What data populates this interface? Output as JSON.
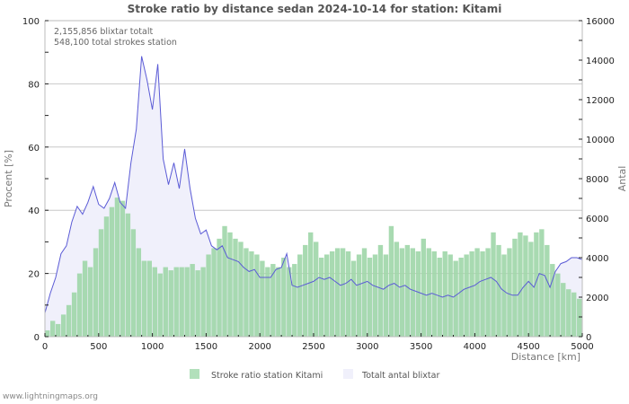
{
  "colors": {
    "bar": "#9fd6a8",
    "bar_legend": "#b2e0bb",
    "area_fill": "#f0f0fb",
    "line": "#5b5bd6",
    "grid": "#c8c8c8",
    "axis": "#bbbbbb"
  },
  "info": {
    "line1": "2,155,856 blixtar totalt",
    "line2": "548,100 total strokes station"
  },
  "footer": "www.lightningmaps.org",
  "chart_data": {
    "type": "bar+area",
    "title": "Stroke ratio by distance sedan 2024-10-14 for station: Kitami",
    "xlabel": "Distance   [km]",
    "ylabel": "Procent   [%]",
    "y2label": "Antal",
    "xlim": [
      0,
      5000
    ],
    "ylim": [
      0,
      100
    ],
    "y2lim": [
      0,
      16000
    ],
    "grid": true,
    "x_ticks": [
      "0",
      "500",
      "1000",
      "1500",
      "2000",
      "2500",
      "3000",
      "3500",
      "4000",
      "4500",
      "5000"
    ],
    "y_ticks": [
      "0",
      "20",
      "40",
      "60",
      "80",
      "100"
    ],
    "y2_ticks": [
      "0",
      "2000",
      "4000",
      "6000",
      "8000",
      "10000",
      "12000",
      "14000",
      "16000"
    ],
    "legend": {
      "placement": "bottom",
      "entries": [
        "Stroke ratio station Kitami",
        "Totalt antal blixtar"
      ]
    },
    "bin_width_km": 50,
    "series": [
      {
        "name": "Stroke ratio station Kitami",
        "type": "bar",
        "axis": "left",
        "x_start": 0,
        "values": [
          2,
          5,
          4,
          7,
          10,
          14,
          20,
          24,
          22,
          28,
          34,
          38,
          41,
          44,
          43,
          39,
          34,
          28,
          24,
          24,
          22,
          20,
          22,
          21,
          22,
          22,
          22,
          23,
          21,
          22,
          26,
          28,
          31,
          35,
          33,
          31,
          30,
          28,
          27,
          26,
          24,
          22,
          23,
          22,
          25,
          22,
          23,
          26,
          29,
          33,
          30,
          25,
          26,
          27,
          28,
          28,
          27,
          24,
          26,
          28,
          25,
          26,
          29,
          26,
          35,
          30,
          28,
          29,
          28,
          27,
          31,
          28,
          27,
          25,
          27,
          26,
          24,
          25,
          26,
          27,
          28,
          27,
          28,
          33,
          29,
          26,
          28,
          31,
          33,
          32,
          30,
          33,
          34,
          29,
          23,
          20,
          17,
          15,
          14,
          12
        ]
      },
      {
        "name": "Totalt antal blixtar",
        "type": "area",
        "axis": "right",
        "x_start": 0,
        "values": [
          1200,
          2200,
          3000,
          4200,
          4600,
          5800,
          6600,
          6200,
          6800,
          7600,
          6700,
          6500,
          7000,
          7800,
          6800,
          6500,
          8800,
          10500,
          14200,
          13000,
          11500,
          13800,
          9000,
          7700,
          8800,
          7500,
          9500,
          7500,
          6000,
          5200,
          5400,
          4600,
          4400,
          4600,
          4000,
          3900,
          3800,
          3500,
          3300,
          3400,
          3000,
          3000,
          3000,
          3400,
          3500,
          4200,
          2600,
          2500,
          2600,
          2700,
          2800,
          3000,
          2900,
          3000,
          2800,
          2600,
          2700,
          2900,
          2600,
          2700,
          2800,
          2600,
          2500,
          2400,
          2600,
          2700,
          2500,
          2600,
          2400,
          2300,
          2200,
          2100,
          2200,
          2100,
          2000,
          2100,
          2000,
          2200,
          2400,
          2500,
          2600,
          2800,
          2900,
          3000,
          2800,
          2400,
          2200,
          2100,
          2100,
          2500,
          2800,
          2500,
          3200,
          3100,
          2500,
          3300,
          3700,
          3800,
          4000,
          4000,
          3900
        ]
      }
    ]
  }
}
